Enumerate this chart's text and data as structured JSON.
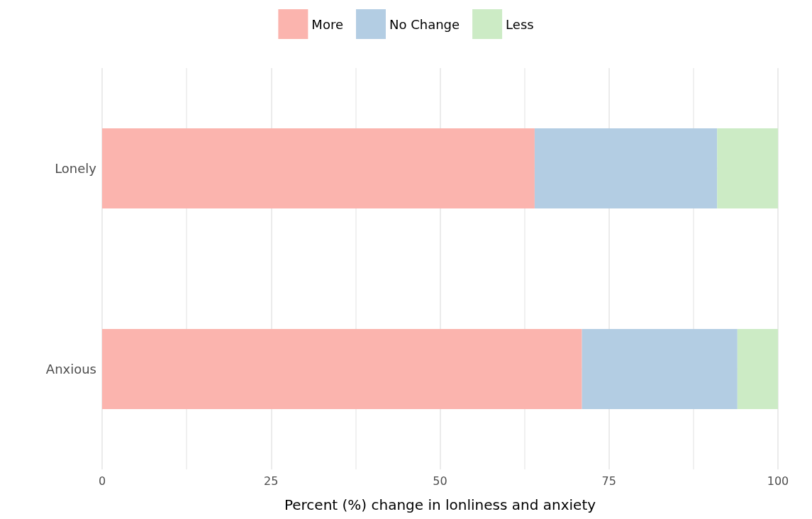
{
  "chart_data": {
    "type": "bar",
    "orientation": "horizontal",
    "stacked": true,
    "xlabel": "Percent (%) change in lonliness and anxiety",
    "categories": [
      "Lonely",
      "Anxious"
    ],
    "series": [
      {
        "name": "More",
        "color": "#fbb4ae",
        "values": [
          64,
          71
        ]
      },
      {
        "name": "No Change",
        "color": "#b3cde3",
        "values": [
          27,
          23
        ]
      },
      {
        "name": "Less",
        "color": "#ccebc5",
        "values": [
          9,
          6
        ]
      }
    ],
    "xlim": [
      0,
      100
    ],
    "xticks": [
      0,
      25,
      50,
      75,
      100
    ],
    "grid": true,
    "legend": "top"
  }
}
